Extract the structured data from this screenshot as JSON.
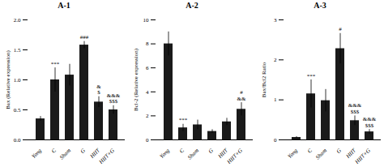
{
  "chart_data": [
    {
      "type": "bar",
      "title": "A-1",
      "ylabel": "Bax (Relative expression)",
      "categories": [
        "Yong",
        "C",
        "Sham",
        "G",
        "HIIT",
        "HIIT+G"
      ],
      "values": [
        0.35,
        1.0,
        1.08,
        1.58,
        0.63,
        0.5
      ],
      "errors": [
        0.04,
        0.2,
        0.18,
        0.06,
        0.09,
        0.07
      ],
      "color": "#1a1a1a",
      "ylim": [
        0,
        2
      ],
      "yticks": [
        {
          "value": 0,
          "label": "0.0"
        },
        0.5,
        {
          "value": 1,
          "label": "1.0"
        },
        1.5,
        {
          "value": 2,
          "label": "2.0"
        }
      ],
      "annotations": [
        {
          "category": "C",
          "text": "***"
        },
        {
          "category": "G",
          "text": "###"
        },
        {
          "category": "HIIT",
          "text": "&\n$"
        },
        {
          "category": "HIIT+G",
          "text": "&&&\n$$$"
        }
      ]
    },
    {
      "type": "bar",
      "title": "A-2",
      "ylabel": "Bcl-2 (Relative expression)",
      "categories": [
        "Yong",
        "C",
        "Sham",
        "G",
        "HIIT",
        "HIIT+G"
      ],
      "values": [
        8.0,
        1.0,
        1.25,
        0.7,
        1.5,
        2.55
      ],
      "errors": [
        1.0,
        0.3,
        0.4,
        0.15,
        0.3,
        0.55
      ],
      "color": "#1a1a1a",
      "ylim": [
        0,
        10
      ],
      "yticks": [
        0,
        2,
        4,
        6,
        8,
        10
      ],
      "annotations": [
        {
          "category": "C",
          "text": "***"
        },
        {
          "category": "HIIT+G",
          "text": "#\n&&"
        }
      ]
    },
    {
      "type": "bar",
      "title": "A-3",
      "ylabel": "Bax/Bcl2 Ratio",
      "categories": [
        "Yong",
        "C",
        "Sham",
        "G",
        "HIIT",
        "HIIT+G"
      ],
      "values": [
        0.06,
        1.15,
        0.98,
        2.28,
        0.48,
        0.2
      ],
      "errors": [
        0.02,
        0.35,
        0.28,
        0.38,
        0.12,
        0.06
      ],
      "color": "#1a1a1a",
      "ylim": [
        0,
        3
      ],
      "yticks": [
        0,
        1,
        2,
        3
      ],
      "annotations": [
        {
          "category": "C",
          "text": "***"
        },
        {
          "category": "G",
          "text": "#"
        },
        {
          "category": "HIIT",
          "text": "&&&\n$$$"
        },
        {
          "category": "HIIT+G",
          "text": "&&&\n$$$"
        }
      ]
    }
  ]
}
